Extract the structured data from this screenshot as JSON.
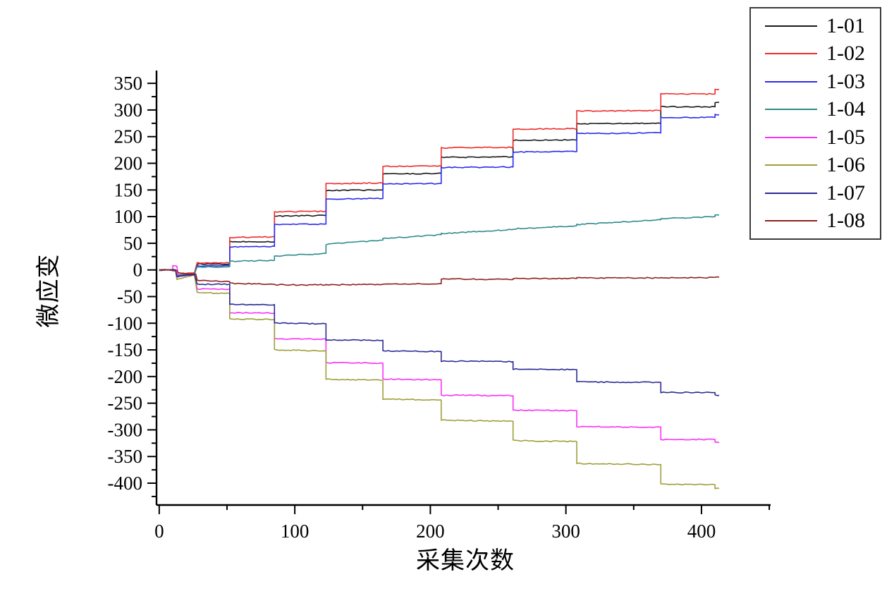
{
  "chart_data": {
    "type": "line",
    "title": "",
    "xlabel": "采集次数",
    "ylabel": "微应变",
    "xlim": [
      -2,
      451
    ],
    "ylim": [
      -441,
      374
    ],
    "x_major_ticks": [
      0,
      100,
      200,
      300,
      400
    ],
    "x_minor_ticks": [
      50,
      150,
      250,
      350,
      450
    ],
    "y_major_ticks": [
      350,
      300,
      250,
      200,
      150,
      100,
      50,
      0,
      -50,
      -100,
      -150,
      -200,
      -250,
      -300,
      -350,
      -400
    ],
    "y_minor_step": 25,
    "grid": false,
    "legend_position": "outside-top-right",
    "axis_color": "#000000",
    "series": [
      {
        "name": "1-01",
        "color": "#1a1a1a",
        "plateaus": [
          [
            0,
            12,
            0,
            0
          ],
          [
            13,
            26,
            -11,
            -7
          ],
          [
            28,
            52,
            11,
            11
          ],
          [
            52,
            85,
            53,
            53
          ],
          [
            85,
            123,
            101,
            102
          ],
          [
            123,
            165,
            149,
            150
          ],
          [
            165,
            208,
            180,
            181
          ],
          [
            208,
            261,
            211,
            212
          ],
          [
            261,
            308,
            243,
            244
          ],
          [
            308,
            370,
            274,
            275
          ],
          [
            370,
            410,
            306,
            306
          ],
          [
            410,
            413,
            314,
            314
          ]
        ]
      },
      {
        "name": "1-02",
        "color": "#ee2b2b",
        "plateaus": [
          [
            0,
            12,
            0,
            0
          ],
          [
            13,
            26,
            -9,
            -5
          ],
          [
            28,
            52,
            13,
            13
          ],
          [
            52,
            85,
            61,
            62
          ],
          [
            85,
            123,
            109,
            110
          ],
          [
            123,
            165,
            162,
            163
          ],
          [
            165,
            208,
            194,
            195
          ],
          [
            208,
            261,
            229,
            230
          ],
          [
            261,
            308,
            264,
            265
          ],
          [
            308,
            370,
            298,
            299
          ],
          [
            370,
            410,
            330,
            330
          ],
          [
            410,
            413,
            339,
            339
          ]
        ]
      },
      {
        "name": "1-03",
        "color": "#2b2bee",
        "plateaus": [
          [
            0,
            12,
            0,
            0
          ],
          [
            13,
            26,
            -13,
            -8
          ],
          [
            28,
            52,
            8,
            8
          ],
          [
            52,
            85,
            43,
            44
          ],
          [
            85,
            123,
            85,
            86
          ],
          [
            123,
            165,
            133,
            134
          ],
          [
            165,
            208,
            161,
            162
          ],
          [
            208,
            261,
            192,
            193
          ],
          [
            261,
            308,
            221,
            222
          ],
          [
            308,
            370,
            256,
            257
          ],
          [
            370,
            410,
            286,
            286
          ],
          [
            410,
            413,
            291,
            291
          ]
        ]
      },
      {
        "name": "1-04",
        "color": "#2e8b8b",
        "plateaus": [
          [
            0,
            12,
            0,
            0
          ],
          [
            13,
            26,
            -10,
            -6
          ],
          [
            28,
            52,
            5,
            6
          ],
          [
            52,
            85,
            16,
            18
          ],
          [
            85,
            123,
            26,
            31
          ],
          [
            123,
            165,
            48,
            56
          ],
          [
            165,
            208,
            59,
            66
          ],
          [
            208,
            261,
            68,
            76
          ],
          [
            261,
            308,
            77,
            83
          ],
          [
            308,
            370,
            85,
            94
          ],
          [
            370,
            410,
            96,
            100
          ],
          [
            410,
            413,
            103,
            103
          ]
        ]
      },
      {
        "name": "1-05",
        "color": "#f831f8",
        "plateaus": [
          [
            0,
            10,
            0,
            0
          ],
          [
            10,
            13,
            8,
            7
          ],
          [
            14,
            26,
            -12,
            -7
          ],
          [
            28,
            52,
            -36,
            -36
          ],
          [
            52,
            85,
            -80,
            -81
          ],
          [
            85,
            123,
            -129,
            -130
          ],
          [
            123,
            165,
            -174,
            -175
          ],
          [
            165,
            208,
            -205,
            -206
          ],
          [
            208,
            261,
            -235,
            -236
          ],
          [
            261,
            308,
            -263,
            -264
          ],
          [
            308,
            370,
            -294,
            -295
          ],
          [
            370,
            410,
            -318,
            -318
          ],
          [
            410,
            413,
            -324,
            -324
          ]
        ]
      },
      {
        "name": "1-06",
        "color": "#9f9f3a",
        "plateaus": [
          [
            0,
            12,
            0,
            0
          ],
          [
            13,
            26,
            -18,
            -10
          ],
          [
            28,
            52,
            -43,
            -44
          ],
          [
            52,
            85,
            -92,
            -93
          ],
          [
            85,
            123,
            -150,
            -152
          ],
          [
            123,
            165,
            -205,
            -207
          ],
          [
            165,
            208,
            -242,
            -244
          ],
          [
            208,
            261,
            -282,
            -284
          ],
          [
            261,
            308,
            -320,
            -322
          ],
          [
            308,
            370,
            -363,
            -365
          ],
          [
            370,
            410,
            -402,
            -403
          ],
          [
            410,
            413,
            -410,
            -410
          ]
        ]
      },
      {
        "name": "1-07",
        "color": "#2b2b94",
        "plateaus": [
          [
            0,
            12,
            0,
            0
          ],
          [
            13,
            26,
            -13,
            -8
          ],
          [
            28,
            52,
            -27,
            -27
          ],
          [
            52,
            85,
            -65,
            -65
          ],
          [
            85,
            123,
            -100,
            -101
          ],
          [
            123,
            165,
            -131,
            -132
          ],
          [
            165,
            208,
            -152,
            -153
          ],
          [
            208,
            261,
            -171,
            -172
          ],
          [
            261,
            308,
            -186,
            -187
          ],
          [
            308,
            370,
            -210,
            -211
          ],
          [
            370,
            410,
            -230,
            -230
          ],
          [
            410,
            413,
            -235,
            -235
          ]
        ]
      },
      {
        "name": "1-08",
        "color": "#8e2020",
        "plateaus": [
          [
            0,
            13,
            0,
            -1
          ],
          [
            14,
            27,
            -6,
            -8
          ],
          [
            28,
            52,
            -19,
            -22
          ],
          [
            52,
            85,
            -25,
            -27
          ],
          [
            85,
            123,
            -28,
            -28
          ],
          [
            123,
            165,
            -28,
            -27
          ],
          [
            165,
            208,
            -27,
            -26
          ],
          [
            208,
            261,
            -17,
            -18
          ],
          [
            261,
            308,
            -16,
            -16
          ],
          [
            308,
            370,
            -15,
            -15
          ],
          [
            370,
            413,
            -15,
            -14
          ]
        ]
      }
    ]
  }
}
